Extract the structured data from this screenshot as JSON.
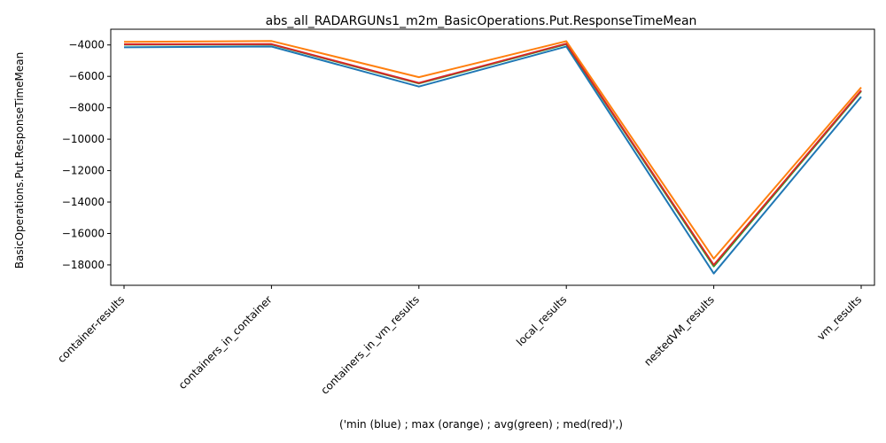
{
  "chart_data": {
    "type": "line",
    "title": "abs_all_RADARGUNs1_m2m_BasicOperations.Put.ResponseTimeMean",
    "xlabel": "('min (blue) ; max (orange) ; avg(green) ; med(red)',)",
    "ylabel": "BasicOperations.Put.ResponseTimeMean",
    "categories": [
      "container-results",
      "containers_in_container",
      "containers_in_vm_results",
      "local_results",
      "nestedVM_results",
      "vm_results"
    ],
    "ylim": [
      -19300,
      -3000
    ],
    "yticks": [
      -4000,
      -6000,
      -8000,
      -10000,
      -12000,
      -14000,
      -16000,
      -18000
    ],
    "grid": false,
    "series": [
      {
        "name": "min",
        "color": "#1f77b4",
        "values": [
          -4150,
          -4100,
          -6650,
          -4100,
          -18550,
          -7300
        ]
      },
      {
        "name": "avg",
        "color": "#2ca02c",
        "values": [
          -3980,
          -3970,
          -6450,
          -3950,
          -18100,
          -6950
        ]
      },
      {
        "name": "med",
        "color": "#d62728",
        "values": [
          -3960,
          -3950,
          -6420,
          -3920,
          -18000,
          -6900
        ]
      },
      {
        "name": "max",
        "color": "#ff7f0e",
        "values": [
          -3800,
          -3750,
          -6050,
          -3760,
          -17600,
          -6700
        ]
      }
    ]
  }
}
